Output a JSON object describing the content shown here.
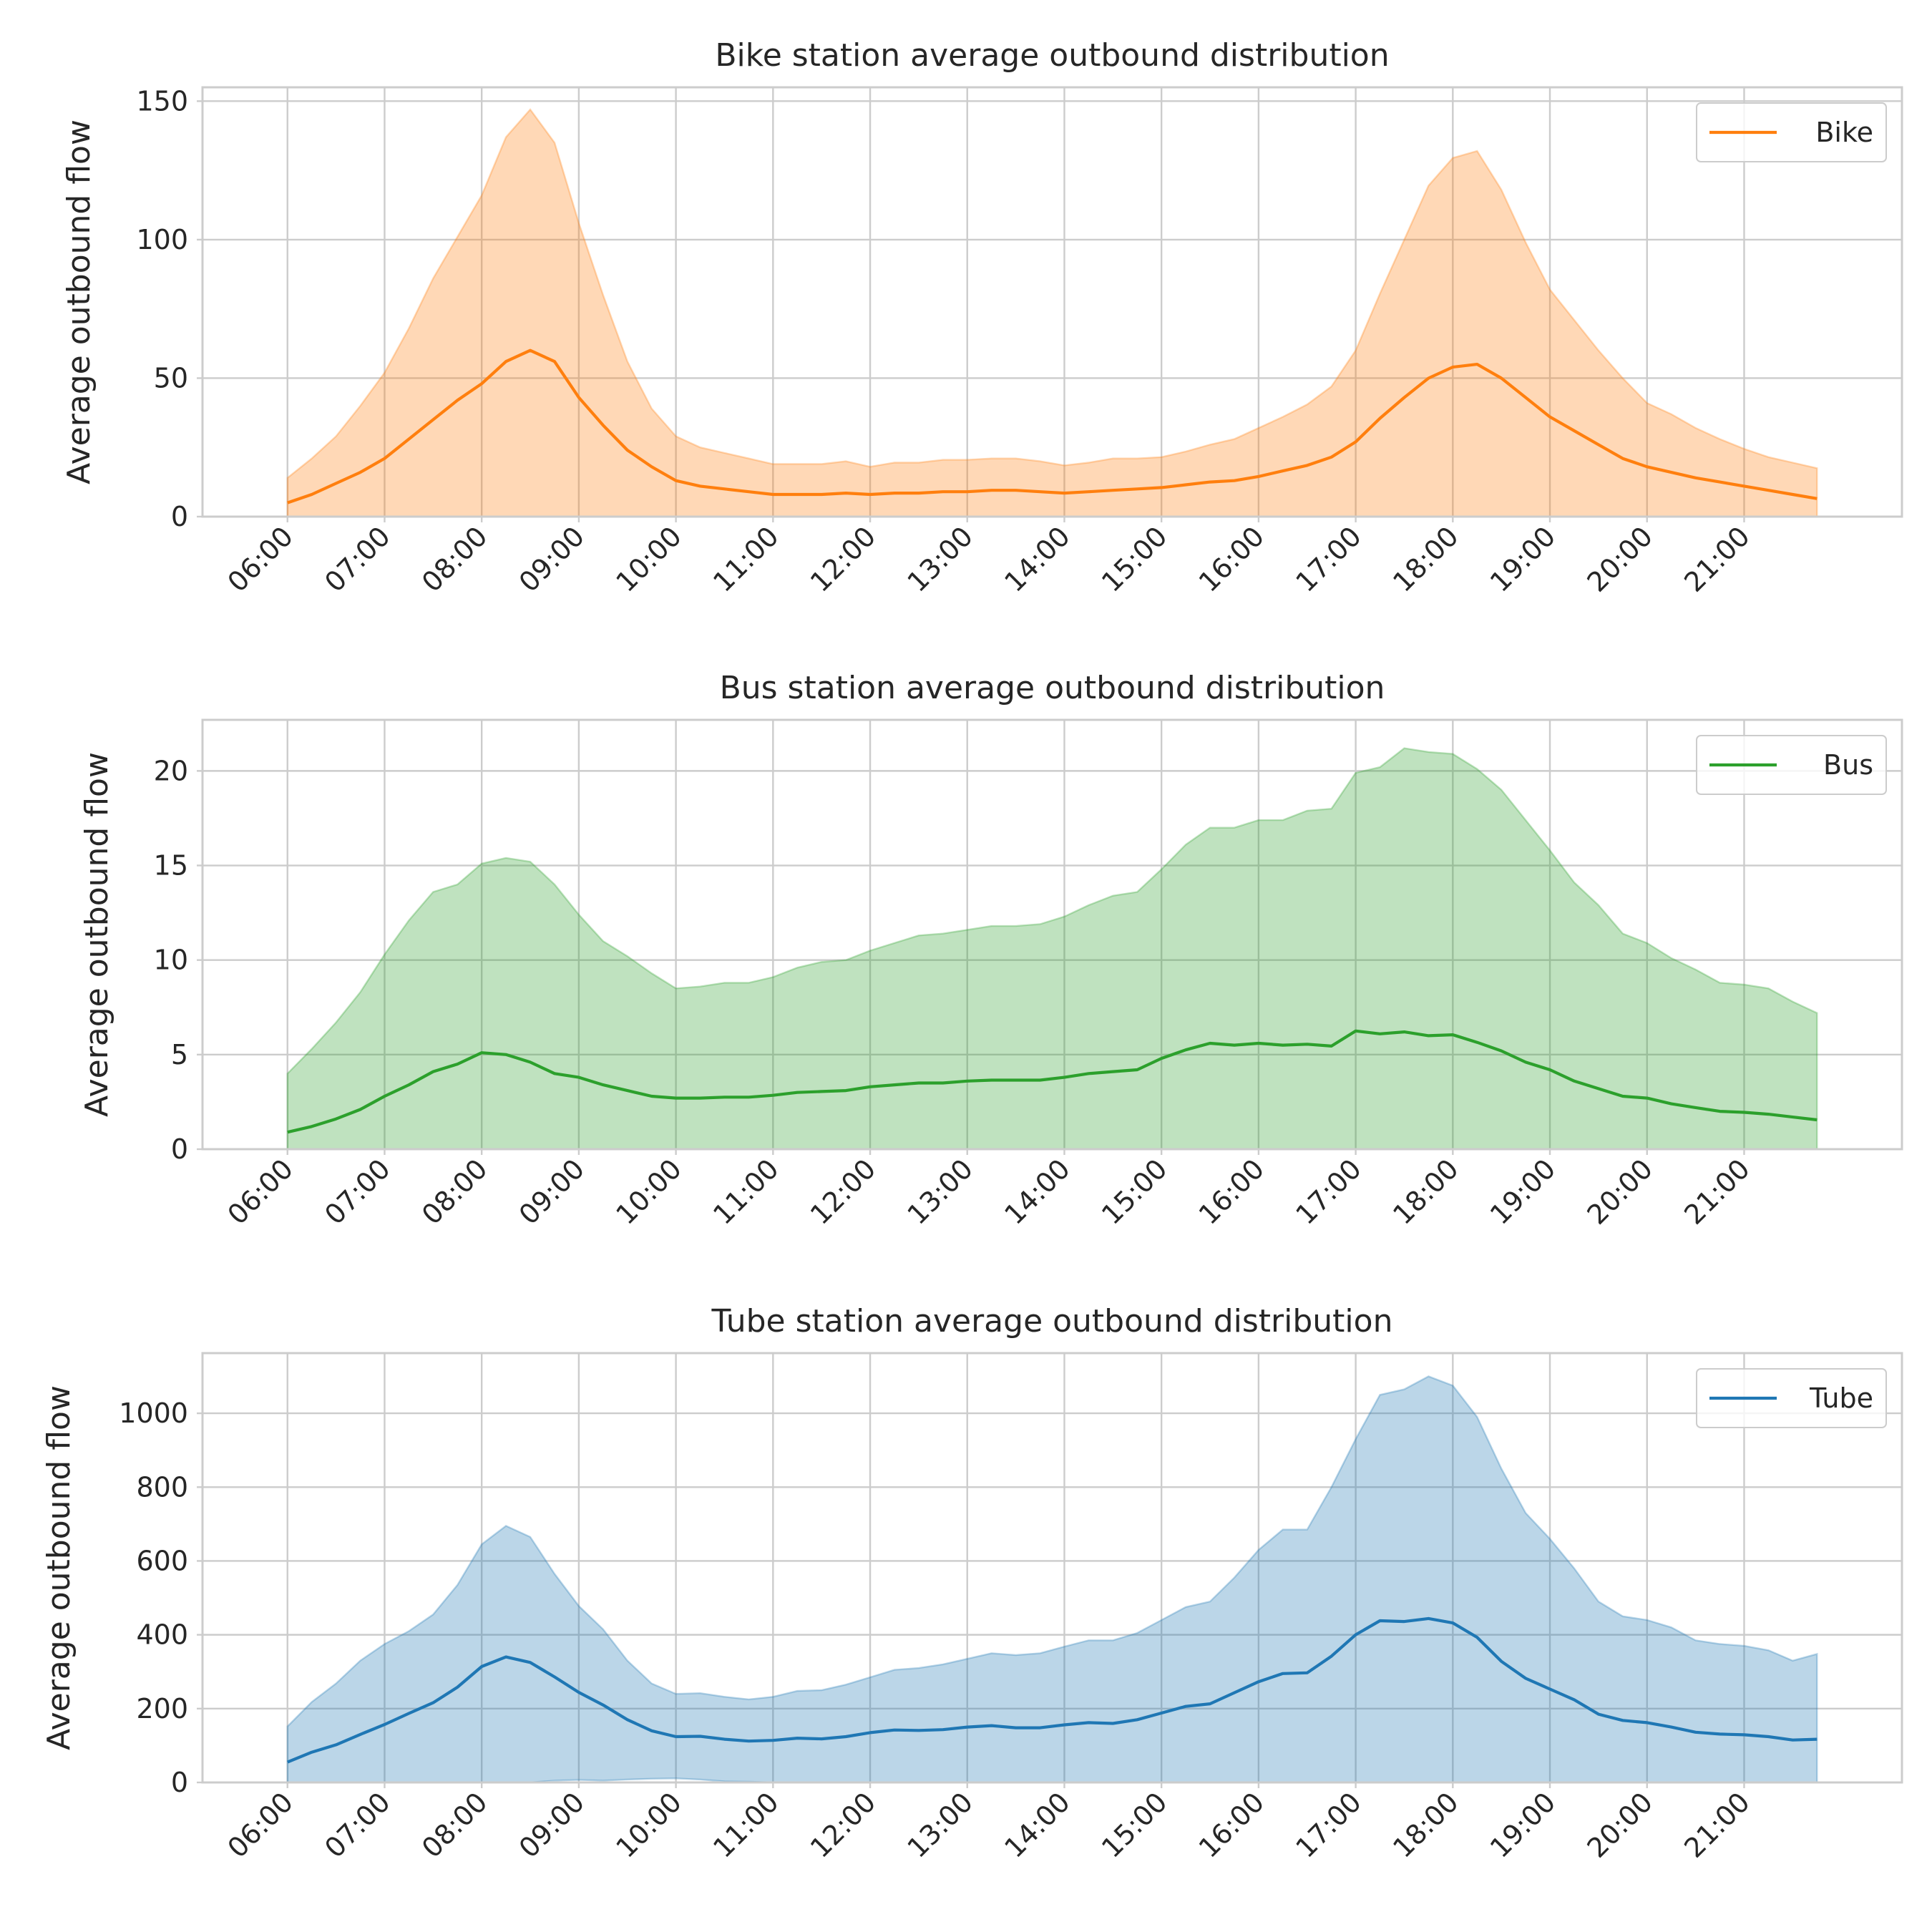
{
  "chart_data": [
    {
      "type": "area",
      "title": "Bike station average outbound distribution",
      "xlabel": "",
      "ylabel": "Average outbound flow",
      "x_ticks": [
        "06:00",
        "07:00",
        "08:00",
        "09:00",
        "10:00",
        "11:00",
        "12:00",
        "13:00",
        "14:00",
        "15:00",
        "16:00",
        "17:00",
        "18:00",
        "19:00",
        "20:00",
        "21:00"
      ],
      "ylim": [
        0,
        155
      ],
      "yticks": [
        0,
        50,
        100,
        150
      ],
      "color": "#ff7f0e",
      "legend": "top-right",
      "grid": true,
      "series": [
        {
          "name": "Bike",
          "x": [
            "06:00",
            "06:15",
            "06:30",
            "06:45",
            "07:00",
            "07:15",
            "07:30",
            "07:45",
            "08:00",
            "08:15",
            "08:30",
            "08:45",
            "09:00",
            "09:15",
            "09:30",
            "09:45",
            "10:00",
            "10:15",
            "10:30",
            "10:45",
            "11:00",
            "11:15",
            "11:30",
            "11:45",
            "12:00",
            "12:15",
            "12:30",
            "12:45",
            "13:00",
            "13:15",
            "13:30",
            "13:45",
            "14:00",
            "14:15",
            "14:30",
            "14:45",
            "15:00",
            "15:15",
            "15:30",
            "15:45",
            "16:00",
            "16:15",
            "16:30",
            "16:45",
            "17:00",
            "17:15",
            "17:30",
            "17:45",
            "18:00",
            "18:15",
            "18:30",
            "18:45",
            "19:00",
            "19:15",
            "19:30",
            "19:45",
            "20:00",
            "20:15",
            "20:30",
            "20:45",
            "21:00",
            "21:15",
            "21:30",
            "21:45"
          ],
          "mean": [
            5,
            8,
            12,
            16,
            21,
            28,
            35,
            42,
            48,
            56,
            60,
            56,
            43,
            33,
            24,
            18,
            13,
            11,
            10,
            9,
            8,
            8,
            8,
            8.5,
            8,
            8.5,
            8.5,
            9,
            9,
            9.5,
            9.5,
            9,
            8.5,
            9,
            9.5,
            10,
            10.5,
            11.5,
            12.5,
            13,
            14.5,
            16.5,
            18.5,
            21.5,
            27,
            35.5,
            43,
            50,
            54,
            55,
            50,
            43,
            36,
            31,
            26,
            21,
            18,
            16,
            14,
            12.5,
            11,
            9.5,
            8,
            6.5
          ],
          "upper": [
            14,
            21,
            29,
            40,
            52,
            68,
            86,
            101,
            116,
            137,
            147,
            135,
            106,
            80,
            56,
            39,
            29,
            25,
            23,
            21,
            19,
            19,
            19,
            20,
            18,
            19.5,
            19.5,
            20.5,
            20.5,
            21,
            21,
            20,
            18.5,
            19.5,
            21,
            21,
            21.5,
            23.5,
            26,
            28,
            32,
            36,
            40.5,
            47,
            60,
            80.5,
            100,
            119.5,
            129.5,
            132,
            118,
            99,
            82,
            71,
            60,
            50,
            41,
            37,
            32,
            28,
            24.5,
            21.5,
            19.5,
            17.5
          ],
          "lower": [
            0,
            0,
            0,
            0,
            0,
            0,
            0,
            0,
            0,
            0,
            0,
            0,
            0,
            0,
            0,
            0,
            0,
            0,
            0,
            0,
            0,
            0,
            0,
            0,
            0,
            0,
            0,
            0,
            0,
            0,
            0,
            0,
            0,
            0,
            0,
            0,
            0,
            0,
            0,
            0,
            0,
            0,
            0,
            0,
            0,
            0,
            0,
            0,
            0,
            0,
            0,
            0,
            0,
            0,
            0,
            0,
            0,
            0,
            0,
            0,
            0,
            0,
            0,
            0
          ]
        }
      ]
    },
    {
      "type": "area",
      "title": "Bus station average outbound distribution",
      "xlabel": "",
      "ylabel": "Average outbound flow",
      "x_ticks": [
        "06:00",
        "07:00",
        "08:00",
        "09:00",
        "10:00",
        "11:00",
        "12:00",
        "13:00",
        "14:00",
        "15:00",
        "16:00",
        "17:00",
        "18:00",
        "19:00",
        "20:00",
        "21:00"
      ],
      "ylim": [
        0,
        22.7
      ],
      "yticks": [
        0,
        5,
        10,
        15,
        20
      ],
      "color": "#2ca02c",
      "legend": "top-right",
      "grid": true,
      "series": [
        {
          "name": "Bus",
          "x": [
            "06:00",
            "06:15",
            "06:30",
            "06:45",
            "07:00",
            "07:15",
            "07:30",
            "07:45",
            "08:00",
            "08:15",
            "08:30",
            "08:45",
            "09:00",
            "09:15",
            "09:30",
            "09:45",
            "10:00",
            "10:15",
            "10:30",
            "10:45",
            "11:00",
            "11:15",
            "11:30",
            "11:45",
            "12:00",
            "12:15",
            "12:30",
            "12:45",
            "13:00",
            "13:15",
            "13:30",
            "13:45",
            "14:00",
            "14:15",
            "14:30",
            "14:45",
            "15:00",
            "15:15",
            "15:30",
            "15:45",
            "16:00",
            "16:15",
            "16:30",
            "16:45",
            "17:00",
            "17:15",
            "17:30",
            "17:45",
            "18:00",
            "18:15",
            "18:30",
            "18:45",
            "19:00",
            "19:15",
            "19:30",
            "19:45",
            "20:00",
            "20:15",
            "20:30",
            "20:45",
            "21:00",
            "21:15",
            "21:30",
            "21:45"
          ],
          "mean": [
            0.9,
            1.2,
            1.6,
            2.1,
            2.8,
            3.4,
            4.1,
            4.5,
            5.1,
            5.0,
            4.6,
            4.0,
            3.8,
            3.4,
            3.1,
            2.8,
            2.7,
            2.7,
            2.75,
            2.75,
            2.85,
            3.0,
            3.05,
            3.1,
            3.3,
            3.4,
            3.5,
            3.5,
            3.6,
            3.65,
            3.65,
            3.65,
            3.8,
            4.0,
            4.1,
            4.2,
            4.8,
            5.25,
            5.6,
            5.5,
            5.6,
            5.5,
            5.55,
            5.45,
            6.25,
            6.1,
            6.2,
            6.0,
            6.05,
            5.65,
            5.2,
            4.6,
            4.2,
            3.6,
            3.2,
            2.8,
            2.7,
            2.4,
            2.2,
            2.0,
            1.95,
            1.85,
            1.7,
            1.55
          ],
          "upper": [
            4.0,
            5.3,
            6.7,
            8.3,
            10.3,
            12.1,
            13.6,
            14.0,
            15.1,
            15.4,
            15.2,
            14.0,
            12.4,
            11.0,
            10.2,
            9.3,
            8.5,
            8.6,
            8.8,
            8.8,
            9.1,
            9.6,
            9.9,
            10.0,
            10.5,
            10.9,
            11.3,
            11.4,
            11.6,
            11.8,
            11.8,
            11.9,
            12.3,
            12.9,
            13.4,
            13.6,
            14.8,
            16.1,
            17.0,
            17.0,
            17.4,
            17.4,
            17.9,
            18.0,
            19.9,
            20.2,
            21.2,
            21.0,
            20.9,
            20.1,
            19.0,
            17.4,
            15.8,
            14.1,
            12.9,
            11.4,
            10.9,
            10.1,
            9.5,
            8.8,
            8.7,
            8.5,
            7.8,
            7.2
          ],
          "lower": [
            0,
            0,
            0,
            0,
            0,
            0,
            0,
            0,
            0,
            0,
            0,
            0,
            0,
            0,
            0,
            0,
            0,
            0,
            0,
            0,
            0,
            0,
            0,
            0,
            0,
            0,
            0,
            0,
            0,
            0,
            0,
            0,
            0,
            0,
            0,
            0,
            0,
            0,
            0,
            0,
            0,
            0,
            0,
            0,
            0,
            0,
            0,
            0,
            0,
            0,
            0,
            0,
            0,
            0,
            0,
            0,
            0,
            0,
            0,
            0,
            0,
            0,
            0,
            0
          ]
        }
      ]
    },
    {
      "type": "area",
      "title": "Tube station average outbound distribution",
      "xlabel": "",
      "ylabel": "Average outbound flow",
      "x_ticks": [
        "06:00",
        "07:00",
        "08:00",
        "09:00",
        "10:00",
        "11:00",
        "12:00",
        "13:00",
        "14:00",
        "15:00",
        "16:00",
        "17:00",
        "18:00",
        "19:00",
        "20:00",
        "21:00"
      ],
      "ylim": [
        0,
        1163
      ],
      "yticks": [
        0,
        200,
        400,
        600,
        800,
        1000
      ],
      "color": "#1f77b4",
      "legend": "top-right",
      "grid": true,
      "series": [
        {
          "name": "Tube",
          "x": [
            "06:00",
            "06:15",
            "06:30",
            "06:45",
            "07:00",
            "07:15",
            "07:30",
            "07:45",
            "08:00",
            "08:15",
            "08:30",
            "08:45",
            "09:00",
            "09:15",
            "09:30",
            "09:45",
            "10:00",
            "10:15",
            "10:30",
            "10:45",
            "11:00",
            "11:15",
            "11:30",
            "11:45",
            "12:00",
            "12:15",
            "12:30",
            "12:45",
            "13:00",
            "13:15",
            "13:30",
            "13:45",
            "14:00",
            "14:15",
            "14:30",
            "14:45",
            "15:00",
            "15:15",
            "15:30",
            "15:45",
            "16:00",
            "16:15",
            "16:30",
            "16:45",
            "17:00",
            "17:15",
            "17:30",
            "17:45",
            "18:00",
            "18:15",
            "18:30",
            "18:45",
            "19:00",
            "19:15",
            "19:30",
            "19:45",
            "20:00",
            "20:15",
            "20:30",
            "20:45",
            "21:00",
            "21:15",
            "21:30",
            "21:45"
          ],
          "mean": [
            55,
            82,
            102,
            130,
            157,
            187,
            216,
            258,
            314,
            340,
            325,
            286,
            244,
            210,
            170,
            140,
            124,
            125,
            117,
            112,
            114,
            120,
            118,
            124,
            135,
            142,
            141,
            143,
            150,
            154,
            148,
            148,
            156,
            162,
            160,
            170,
            188,
            206,
            213,
            243,
            273,
            295,
            297,
            342,
            400,
            438,
            436,
            444,
            432,
            393,
            328,
            282,
            253,
            224,
            185,
            168,
            162,
            150,
            136,
            131,
            129,
            124,
            115,
            117
          ],
          "upper": [
            152,
            218,
            268,
            330,
            375,
            410,
            455,
            535,
            645,
            695,
            665,
            565,
            478,
            415,
            330,
            268,
            240,
            242,
            232,
            225,
            232,
            248,
            250,
            265,
            285,
            305,
            310,
            320,
            335,
            350,
            345,
            350,
            368,
            385,
            385,
            405,
            440,
            475,
            490,
            555,
            630,
            685,
            685,
            800,
            930,
            1050,
            1065,
            1100,
            1075,
            990,
            850,
            730,
            660,
            580,
            490,
            450,
            440,
            420,
            385,
            375,
            370,
            358,
            330,
            348
          ],
          "lower": [
            0,
            0,
            0,
            0,
            0,
            0,
            0,
            0,
            0,
            0,
            0,
            5,
            7,
            5,
            8,
            10,
            11,
            8,
            3,
            2,
            0,
            0,
            0,
            0,
            0,
            0,
            0,
            0,
            0,
            0,
            0,
            0,
            0,
            0,
            0,
            0,
            0,
            0,
            0,
            0,
            0,
            0,
            0,
            0,
            0,
            0,
            0,
            0,
            0,
            0,
            0,
            0,
            0,
            0,
            0,
            0,
            0,
            0,
            0,
            0,
            0,
            0,
            0,
            0
          ]
        }
      ]
    }
  ]
}
